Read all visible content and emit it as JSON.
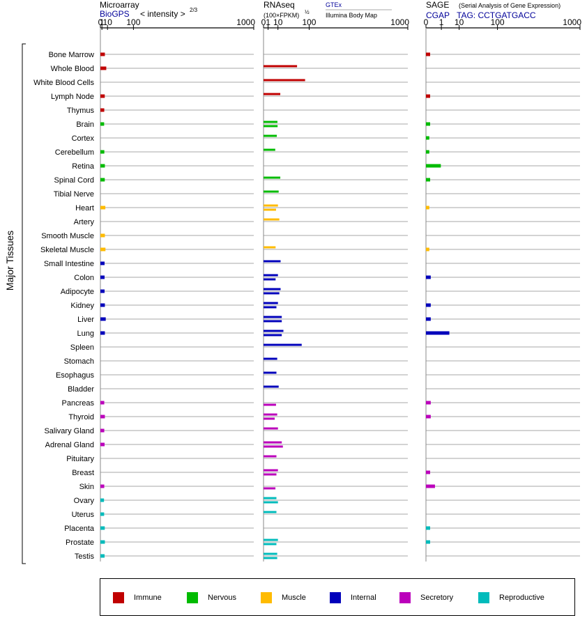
{
  "panels": {
    "microarray": {
      "title": "Microarray",
      "source": "BioGPS",
      "scale": "< intensity >",
      "scale_exp": "2/3"
    },
    "rnaseq": {
      "title": "RNAseq",
      "scale": "(100×FPKM)",
      "scale_exp": "½",
      "source_a": "GTEx",
      "source_b": "Illumina Body Map"
    },
    "sage": {
      "title": "SAGE",
      "subtitle": "(Serial Analysis of Gene Expression)",
      "source": "CGAP",
      "tag": "TAG: CCTGATGACC"
    }
  },
  "y_axis_label": "Major Tissues",
  "legend": [
    {
      "name": "Immune",
      "color": "#c00000"
    },
    {
      "name": "Nervous",
      "color": "#00bb00"
    },
    {
      "name": "Muscle",
      "color": "#ffbb00"
    },
    {
      "name": "Internal",
      "color": "#0000bb"
    },
    {
      "name": "Secretory",
      "color": "#bb00bb"
    },
    {
      "name": "Reproductive",
      "color": "#00bbbb"
    }
  ],
  "chart_data": {
    "type": "bar",
    "orientation": "horizontal",
    "x_scale": "power",
    "x_ticks": [
      "0",
      "1",
      "10",
      "100",
      "1000"
    ],
    "xlim": [
      0,
      1000
    ],
    "categories": [
      "Bone Marrow",
      "Whole Blood",
      "White Blood Cells",
      "Lymph Node",
      "Thymus",
      "Brain",
      "Cortex",
      "Cerebellum",
      "Retina",
      "Spinal Cord",
      "Tibial Nerve",
      "Heart",
      "Artery",
      "Smooth Muscle",
      "Skeletal Muscle",
      "Small Intestine",
      "Colon",
      "Adipocyte",
      "Kidney",
      "Liver",
      "Lung",
      "Spleen",
      "Stomach",
      "Esophagus",
      "Bladder",
      "Pancreas",
      "Thyroid",
      "Salivary Gland",
      "Adrenal Gland",
      "Pituitary",
      "Breast",
      "Skin",
      "Ovary",
      "Uterus",
      "Placenta",
      "Prostate",
      "Testis"
    ],
    "groups": [
      "Immune",
      "Immune",
      "Immune",
      "Immune",
      "Immune",
      "Nervous",
      "Nervous",
      "Nervous",
      "Nervous",
      "Nervous",
      "Nervous",
      "Muscle",
      "Muscle",
      "Muscle",
      "Muscle",
      "Internal",
      "Internal",
      "Internal",
      "Internal",
      "Internal",
      "Internal",
      "Internal",
      "Internal",
      "Internal",
      "Internal",
      "Secretory",
      "Secretory",
      "Secretory",
      "Secretory",
      "Secretory",
      "Secretory",
      "Secretory",
      "Reproductive",
      "Reproductive",
      "Reproductive",
      "Reproductive",
      "Reproductive"
    ],
    "microarray": [
      5,
      7.5,
      null,
      4.8,
      4,
      3.8,
      null,
      4.1,
      5,
      4.8,
      null,
      5.8,
      null,
      5,
      6,
      4.5,
      4.5,
      4.5,
      5,
      6.5,
      5,
      null,
      null,
      null,
      null,
      4,
      5,
      4,
      4.5,
      null,
      null,
      4,
      3.6,
      3.8,
      4.8,
      5,
      4.5
    ],
    "rnaseq_gtex": [
      null,
      54,
      83,
      13.5,
      null,
      9.3,
      8.5,
      6.6,
      null,
      13.5,
      11,
      10,
      12,
      null,
      7,
      14,
      10,
      14,
      10,
      16,
      19,
      70,
      9,
      8,
      11,
      null,
      9,
      10,
      16,
      8,
      10,
      null,
      8,
      8,
      null,
      10,
      9
    ],
    "rnaseq_ibm": [
      null,
      null,
      null,
      null,
      null,
      9.5,
      null,
      null,
      null,
      null,
      null,
      7.5,
      null,
      null,
      null,
      null,
      7,
      12,
      8,
      16,
      16,
      null,
      null,
      null,
      null,
      7.5,
      6,
      null,
      18,
      null,
      8,
      6.8,
      10,
      null,
      null,
      8,
      9
    ],
    "sage": [
      0.02,
      null,
      null,
      0.02,
      null,
      0.02,
      0.01,
      0.01,
      0.9,
      0.02,
      null,
      0.01,
      null,
      null,
      0.01,
      null,
      0.03,
      null,
      0.03,
      0.03,
      3.5,
      null,
      null,
      null,
      null,
      0.03,
      0.03,
      null,
      null,
      null,
      0.02,
      0.2,
      null,
      null,
      0.02,
      0.02,
      null
    ]
  }
}
